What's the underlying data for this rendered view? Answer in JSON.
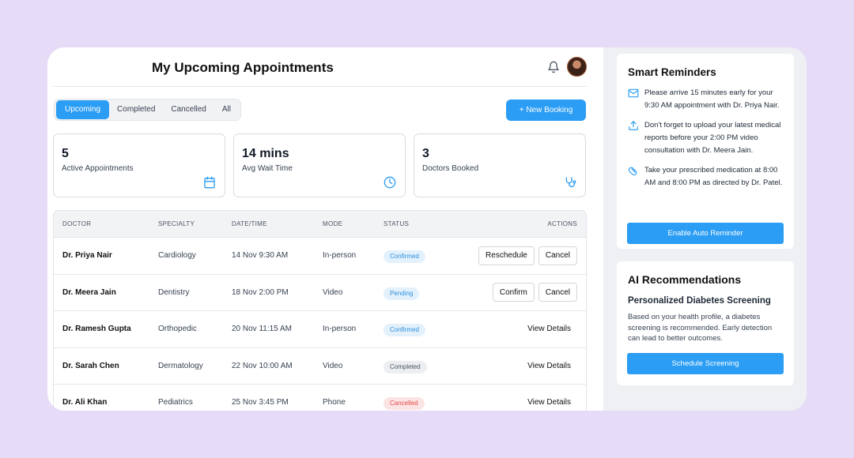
{
  "header": {
    "title": "My Upcoming Appointments"
  },
  "tabs": [
    {
      "label": "Upcoming",
      "active": true
    },
    {
      "label": "Completed",
      "active": false
    },
    {
      "label": "Cancelled",
      "active": false
    },
    {
      "label": "All",
      "active": false
    }
  ],
  "new_booking_label": "+ New Booking",
  "stats": [
    {
      "value": "5",
      "label": "Active Appointments",
      "icon": "calendar-icon"
    },
    {
      "value": "14 mins",
      "label": "Avg Wait Time",
      "icon": "clock-icon"
    },
    {
      "value": "3",
      "label": "Doctors Booked",
      "icon": "stethoscope-icon"
    }
  ],
  "table": {
    "headers": [
      "DOCTOR",
      "SPECIALTY",
      "DATE/TIME",
      "MODE",
      "STATUS",
      "ACTIONS"
    ],
    "rows": [
      {
        "doctor": "Dr. Priya Nair",
        "specialty": "Cardiology",
        "datetime": "14 Nov 9:30 AM",
        "mode": "In-person",
        "status": "Confirmed",
        "actions": [
          "Reschedule",
          "Cancel"
        ]
      },
      {
        "doctor": "Dr. Meera Jain",
        "specialty": "Dentistry",
        "datetime": "18 Nov 2:00 PM",
        "mode": "Video",
        "status": "Pending",
        "actions": [
          "Confirm",
          "Cancel"
        ]
      },
      {
        "doctor": "Dr. Ramesh Gupta",
        "specialty": "Orthopedic",
        "datetime": "20 Nov 11:15 AM",
        "mode": "In-person",
        "status": "Confirmed",
        "actions": [
          "View Details"
        ]
      },
      {
        "doctor": "Dr. Sarah Chen",
        "specialty": "Dermatology",
        "datetime": "22 Nov 10:00 AM",
        "mode": "Video",
        "status": "Completed",
        "actions": [
          "View Details"
        ]
      },
      {
        "doctor": "Dr. Ali Khan",
        "specialty": "Pediatrics",
        "datetime": "25 Nov 3:45 PM",
        "mode": "Phone",
        "status": "Cancelled",
        "actions": [
          "View Details"
        ]
      }
    ]
  },
  "status_colors": {
    "Confirmed": {
      "bg": "#e3f1fd",
      "fg": "#2f8fd8"
    },
    "Pending": {
      "bg": "#e3f1fd",
      "fg": "#2f8fd8"
    },
    "Completed": {
      "bg": "#eceef1",
      "fg": "#4b5563"
    },
    "Cancelled": {
      "bg": "#fde4e4",
      "fg": "#e04b4b"
    }
  },
  "smart_reminders": {
    "title": "Smart Reminders",
    "items": [
      {
        "icon": "mail-icon",
        "text": "Please arrive 15 minutes early for your 9:30 AM appointment with Dr. Priya Nair."
      },
      {
        "icon": "upload-icon",
        "text": "Don't forget to upload your latest medical reports before your 2:00 PM video consultation with Dr. Meera Jain."
      },
      {
        "icon": "pill-icon",
        "text": "Take your prescribed medication at 8:00 AM and 8:00 PM as directed by Dr. Patel."
      }
    ],
    "button_label": "Enable Auto Reminder"
  },
  "ai_recommendations": {
    "title": "AI Recommendations",
    "subtitle": "Personalized Diabetes Screening",
    "body": "Based on your health profile, a diabetes screening is recommended. Early detection can lead to better outcomes.",
    "button_label": "Schedule Screening"
  },
  "colors": {
    "accent": "#2b9df4",
    "background": "#e7dcf7"
  }
}
